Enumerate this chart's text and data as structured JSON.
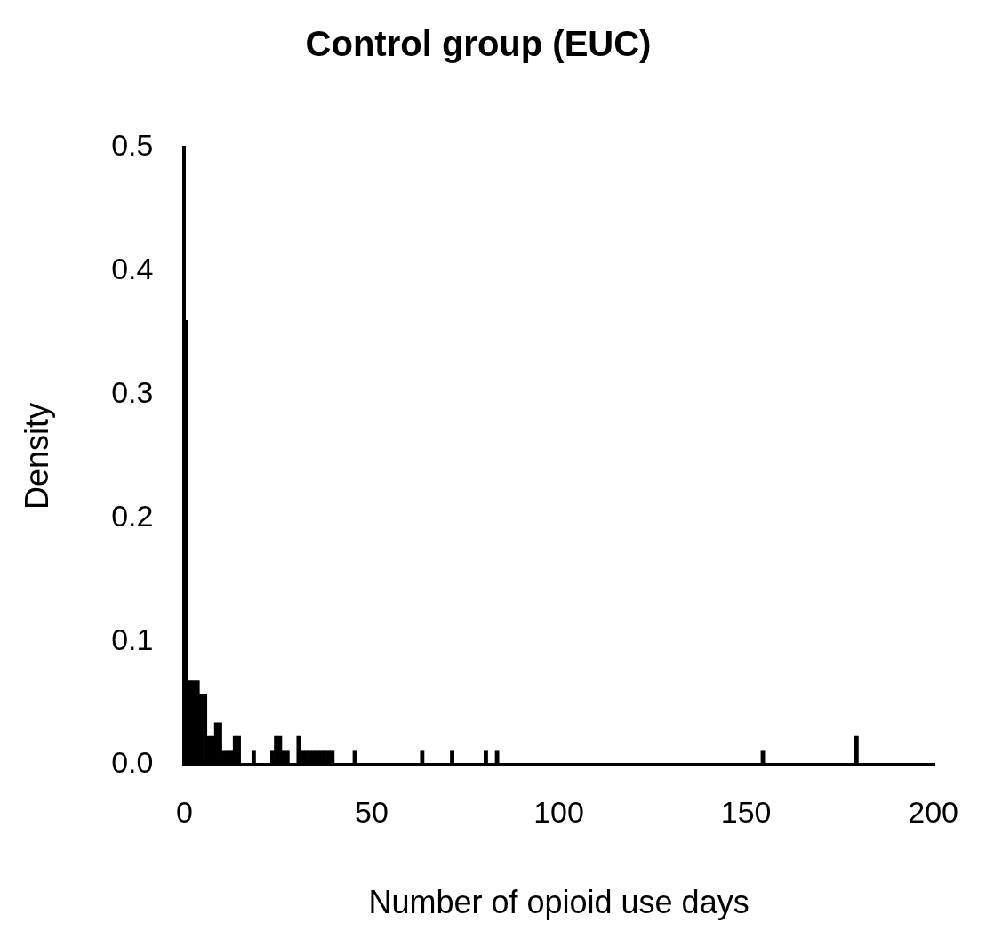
{
  "chart_data": {
    "type": "histogram",
    "title": "Control group (EUC)",
    "xlabel": "Number of opioid use days",
    "ylabel": "Density",
    "color": "#000000",
    "bins": [
      0,
      1,
      2,
      3,
      4,
      5,
      6,
      7,
      8,
      9,
      10,
      11,
      12,
      13,
      14,
      15,
      16,
      17,
      18,
      19,
      20,
      21,
      22,
      23,
      24,
      25,
      26,
      27,
      28,
      29,
      30,
      31,
      32,
      33,
      34,
      35,
      36,
      37,
      38,
      39,
      40,
      41,
      42,
      43,
      44,
      45,
      46,
      47,
      48,
      49,
      50,
      51,
      52,
      53,
      54,
      55,
      56,
      57,
      58,
      59,
      60,
      61,
      62,
      63,
      64,
      65,
      66,
      67,
      68,
      69,
      70,
      71,
      72,
      73,
      74,
      75,
      76,
      77,
      78,
      79,
      80,
      81,
      82,
      83,
      84,
      85,
      86,
      87,
      88,
      89,
      90,
      91,
      92,
      93,
      94,
      95,
      96,
      97,
      98,
      99,
      100,
      101,
      102,
      103,
      104,
      105,
      106,
      107,
      108,
      109,
      110,
      111,
      112,
      113,
      114,
      115,
      116,
      117,
      118,
      119,
      120,
      121,
      122,
      123,
      124,
      125,
      126,
      127,
      128,
      129,
      130,
      131,
      132,
      133,
      134,
      135,
      136,
      137,
      138,
      139,
      140,
      141,
      142,
      143,
      144,
      145,
      146,
      147,
      148,
      149,
      150,
      151,
      152,
      153,
      154,
      155,
      156,
      157,
      158,
      159,
      160,
      161,
      162,
      163,
      164,
      165,
      166,
      167,
      168,
      169,
      170,
      171,
      172,
      173,
      174,
      175,
      176,
      177,
      178,
      179,
      180
    ],
    "values": [
      0.36,
      0.068,
      0.068,
      0.068,
      0.057,
      0.057,
      0.023,
      0.023,
      0.034,
      0.034,
      0.011,
      0.011,
      0.011,
      0.023,
      0.023,
      0,
      0,
      0,
      0.011,
      0,
      0,
      0,
      0,
      0.011,
      0.023,
      0.023,
      0.011,
      0.011,
      0,
      0,
      0.023,
      0.011,
      0.011,
      0.011,
      0.011,
      0.011,
      0.011,
      0.011,
      0.011,
      0.011,
      0,
      0,
      0,
      0,
      0,
      0.011,
      0,
      0,
      0,
      0,
      0,
      0,
      0,
      0,
      0,
      0,
      0,
      0,
      0,
      0,
      0,
      0,
      0,
      0.011,
      0,
      0,
      0,
      0,
      0,
      0,
      0,
      0.011,
      0,
      0,
      0,
      0,
      0,
      0,
      0,
      0,
      0.011,
      0,
      0,
      0.011,
      0,
      0,
      0,
      0,
      0,
      0,
      0,
      0,
      0,
      0,
      0,
      0,
      0,
      0,
      0,
      0,
      0,
      0,
      0,
      0,
      0,
      0,
      0,
      0,
      0,
      0,
      0,
      0,
      0,
      0,
      0,
      0,
      0,
      0,
      0,
      0,
      0,
      0,
      0,
      0,
      0,
      0,
      0,
      0,
      0,
      0,
      0,
      0,
      0,
      0,
      0,
      0,
      0,
      0,
      0,
      0,
      0,
      0,
      0,
      0,
      0,
      0,
      0,
      0,
      0,
      0,
      0,
      0,
      0,
      0,
      0.011,
      0,
      0,
      0,
      0,
      0,
      0,
      0,
      0,
      0,
      0,
      0,
      0,
      0,
      0,
      0,
      0,
      0,
      0,
      0,
      0,
      0,
      0,
      0,
      0,
      0.023
    ],
    "xlim": [
      0,
      200
    ],
    "xticks": [
      0,
      50,
      100,
      150,
      200
    ],
    "ylim": [
      0,
      0.5
    ],
    "yticks": [
      {
        "value": 0,
        "label": "0.0"
      },
      0.1,
      0.2,
      0.3,
      0.4,
      0.5
    ]
  }
}
